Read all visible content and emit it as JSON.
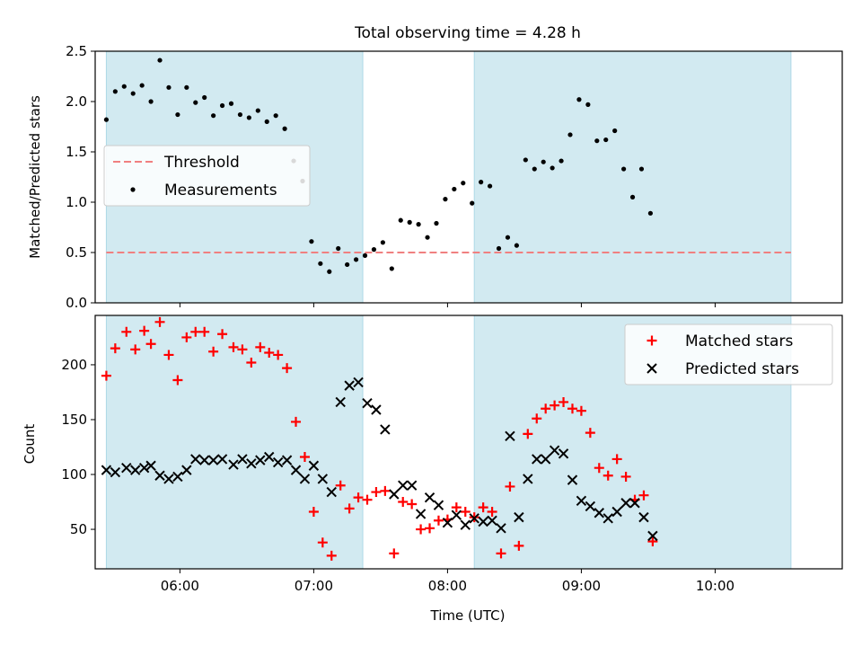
{
  "chart_data": [
    {
      "type": "scatter",
      "title": "Total observing time = 4.28 h",
      "xlabel": "",
      "ylabel": "Matched/Predicted stars",
      "xlim": [
        "05:22",
        "10:57"
      ],
      "ylim": [
        0,
        2.5
      ],
      "yticks": [
        "0.0",
        "0.5",
        "1.0",
        "1.5",
        "2.0",
        "2.5"
      ],
      "xticks": [
        "06:00",
        "07:00",
        "08:00",
        "09:00",
        "10:00"
      ],
      "shaded_intervals": [
        [
          "05:27",
          "07:22"
        ],
        [
          "08:12",
          "10:34"
        ]
      ],
      "shade_color": "#add8e6",
      "threshold": {
        "name": "Threshold",
        "value": 0.5,
        "from": "05:27",
        "to": "10:34",
        "color": "#f08080",
        "style": "dashed"
      },
      "legend_position": "center-left",
      "series": [
        {
          "name": "Measurements",
          "color": "#000000",
          "points": [
            [
              "05:27",
              1.82
            ],
            [
              "05:31",
              2.1
            ],
            [
              "05:35",
              2.15
            ],
            [
              "05:39",
              2.08
            ],
            [
              "05:43",
              2.16
            ],
            [
              "05:47",
              2.0
            ],
            [
              "05:51",
              2.41
            ],
            [
              "05:55",
              2.14
            ],
            [
              "05:59",
              1.87
            ],
            [
              "06:03",
              2.14
            ],
            [
              "06:07",
              1.99
            ],
            [
              "06:11",
              2.04
            ],
            [
              "06:15",
              1.86
            ],
            [
              "06:19",
              1.96
            ],
            [
              "06:23",
              1.98
            ],
            [
              "06:27",
              1.87
            ],
            [
              "06:31",
              1.84
            ],
            [
              "06:35",
              1.91
            ],
            [
              "06:39",
              1.8
            ],
            [
              "06:43",
              1.86
            ],
            [
              "06:47",
              1.73
            ],
            [
              "06:51",
              1.41
            ],
            [
              "06:55",
              1.21
            ],
            [
              "06:59",
              0.61
            ],
            [
              "07:03",
              0.39
            ],
            [
              "07:07",
              0.31
            ],
            [
              "07:11",
              0.54
            ],
            [
              "07:15",
              0.38
            ],
            [
              "07:19",
              0.43
            ],
            [
              "07:23",
              0.47
            ],
            [
              "07:27",
              0.53
            ],
            [
              "07:31",
              0.6
            ],
            [
              "07:35",
              0.34
            ],
            [
              "07:39",
              0.82
            ],
            [
              "07:43",
              0.8
            ],
            [
              "07:47",
              0.78
            ],
            [
              "07:51",
              0.65
            ],
            [
              "07:55",
              0.79
            ],
            [
              "07:59",
              1.03
            ],
            [
              "08:03",
              1.13
            ],
            [
              "08:07",
              1.19
            ],
            [
              "08:11",
              0.99
            ],
            [
              "08:15",
              1.2
            ],
            [
              "08:19",
              1.16
            ],
            [
              "08:23",
              0.54
            ],
            [
              "08:27",
              0.65
            ],
            [
              "08:31",
              0.57
            ],
            [
              "08:35",
              1.42
            ],
            [
              "08:39",
              1.33
            ],
            [
              "08:43",
              1.4
            ],
            [
              "08:47",
              1.34
            ],
            [
              "08:51",
              1.41
            ],
            [
              "08:55",
              1.67
            ],
            [
              "08:59",
              2.02
            ],
            [
              "09:03",
              1.97
            ],
            [
              "09:07",
              1.61
            ],
            [
              "09:11",
              1.62
            ],
            [
              "09:15",
              1.71
            ],
            [
              "09:19",
              1.33
            ],
            [
              "09:23",
              1.05
            ],
            [
              "09:27",
              1.33
            ],
            [
              "09:31",
              0.89
            ]
          ]
        }
      ]
    },
    {
      "type": "scatter",
      "title": "",
      "xlabel": "Time (UTC)",
      "ylabel": "Count",
      "xlim": [
        "05:22",
        "10:57"
      ],
      "ylim": [
        14,
        245
      ],
      "yticks": [
        "50",
        "100",
        "150",
        "200"
      ],
      "xticks": [
        "06:00",
        "07:00",
        "08:00",
        "09:00",
        "10:00"
      ],
      "shaded_intervals": [
        [
          "05:27",
          "07:22"
        ],
        [
          "08:12",
          "10:34"
        ]
      ],
      "shade_color": "#add8e6",
      "legend_position": "top-right",
      "series": [
        {
          "name": "Matched stars",
          "marker": "plus",
          "color": "#ff0000",
          "points": [
            [
              "05:27",
              190
            ],
            [
              "05:31",
              215
            ],
            [
              "05:36",
              230
            ],
            [
              "05:40",
              214
            ],
            [
              "05:44",
              231
            ],
            [
              "05:47",
              219
            ],
            [
              "05:51",
              239
            ],
            [
              "05:55",
              209
            ],
            [
              "05:59",
              186
            ],
            [
              "06:03",
              225
            ],
            [
              "06:07",
              230
            ],
            [
              "06:11",
              230
            ],
            [
              "06:15",
              212
            ],
            [
              "06:19",
              228
            ],
            [
              "06:24",
              216
            ],
            [
              "06:28",
              214
            ],
            [
              "06:32",
              202
            ],
            [
              "06:36",
              216
            ],
            [
              "06:40",
              211
            ],
            [
              "06:44",
              209
            ],
            [
              "06:48",
              197
            ],
            [
              "06:52",
              148
            ],
            [
              "06:56",
              116
            ],
            [
              "07:00",
              66
            ],
            [
              "07:04",
              38
            ],
            [
              "07:08",
              26
            ],
            [
              "07:12",
              90
            ],
            [
              "07:16",
              69
            ],
            [
              "07:20",
              79
            ],
            [
              "07:24",
              77
            ],
            [
              "07:28",
              84
            ],
            [
              "07:32",
              85
            ],
            [
              "07:36",
              28
            ],
            [
              "07:40",
              75
            ],
            [
              "07:44",
              73
            ],
            [
              "07:48",
              50
            ],
            [
              "07:52",
              51
            ],
            [
              "07:56",
              58
            ],
            [
              "08:00",
              59
            ],
            [
              "08:04",
              70
            ],
            [
              "08:08",
              66
            ],
            [
              "08:12",
              61
            ],
            [
              "08:16",
              70
            ],
            [
              "08:20",
              66
            ],
            [
              "08:24",
              28
            ],
            [
              "08:28",
              89
            ],
            [
              "08:32",
              35
            ],
            [
              "08:36",
              137
            ],
            [
              "08:40",
              151
            ],
            [
              "08:44",
              160
            ],
            [
              "08:48",
              163
            ],
            [
              "08:52",
              166
            ],
            [
              "08:56",
              160
            ],
            [
              "09:00",
              158
            ],
            [
              "09:04",
              138
            ],
            [
              "09:08",
              106
            ],
            [
              "09:12",
              99
            ],
            [
              "09:16",
              114
            ],
            [
              "09:20",
              98
            ],
            [
              "09:24",
              77
            ],
            [
              "09:28",
              81
            ],
            [
              "09:32",
              39
            ]
          ]
        },
        {
          "name": "Predicted stars",
          "marker": "x",
          "color": "#000000",
          "points": [
            [
              "05:27",
              104
            ],
            [
              "05:31",
              102
            ],
            [
              "05:36",
              106
            ],
            [
              "05:40",
              104
            ],
            [
              "05:44",
              106
            ],
            [
              "05:47",
              108
            ],
            [
              "05:51",
              99
            ],
            [
              "05:55",
              96
            ],
            [
              "05:59",
              98
            ],
            [
              "06:03",
              104
            ],
            [
              "06:07",
              114
            ],
            [
              "06:11",
              113
            ],
            [
              "06:15",
              113
            ],
            [
              "06:19",
              114
            ],
            [
              "06:24",
              109
            ],
            [
              "06:28",
              114
            ],
            [
              "06:32",
              110
            ],
            [
              "06:36",
              113
            ],
            [
              "06:40",
              116
            ],
            [
              "06:44",
              111
            ],
            [
              "06:48",
              113
            ],
            [
              "06:52",
              104
            ],
            [
              "06:56",
              96
            ],
            [
              "07:00",
              108
            ],
            [
              "07:04",
              96
            ],
            [
              "07:08",
              84
            ],
            [
              "07:12",
              166
            ],
            [
              "07:16",
              181
            ],
            [
              "07:20",
              184
            ],
            [
              "07:24",
              165
            ],
            [
              "07:28",
              159
            ],
            [
              "07:32",
              141
            ],
            [
              "07:36",
              82
            ],
            [
              "07:40",
              90
            ],
            [
              "07:44",
              90
            ],
            [
              "07:48",
              64
            ],
            [
              "07:52",
              79
            ],
            [
              "07:56",
              72
            ],
            [
              "08:00",
              56
            ],
            [
              "08:04",
              63
            ],
            [
              "08:08",
              54
            ],
            [
              "08:12",
              60
            ],
            [
              "08:16",
              57
            ],
            [
              "08:20",
              58
            ],
            [
              "08:24",
              51
            ],
            [
              "08:28",
              135
            ],
            [
              "08:32",
              61
            ],
            [
              "08:36",
              96
            ],
            [
              "08:40",
              114
            ],
            [
              "08:44",
              114
            ],
            [
              "08:48",
              122
            ],
            [
              "08:52",
              119
            ],
            [
              "08:56",
              95
            ],
            [
              "09:00",
              76
            ],
            [
              "09:04",
              71
            ],
            [
              "09:08",
              65
            ],
            [
              "09:12",
              60
            ],
            [
              "09:16",
              66
            ],
            [
              "09:20",
              74
            ],
            [
              "09:24",
              74
            ],
            [
              "09:28",
              61
            ],
            [
              "09:32",
              44
            ]
          ]
        }
      ]
    }
  ]
}
